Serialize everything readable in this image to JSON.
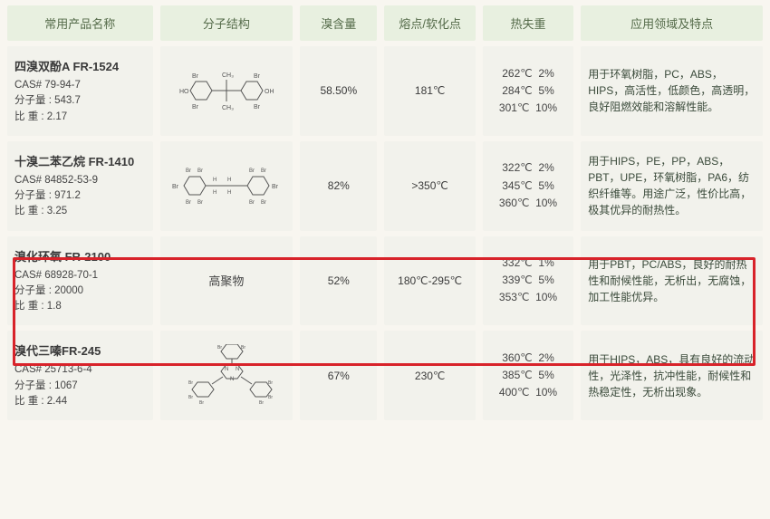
{
  "columns": {
    "name": "常用产品名称",
    "structure": "分子结构",
    "brContent": "溴含量",
    "melting": "熔点/软化点",
    "tga": "热失重",
    "application": "应用领域及特点"
  },
  "rows": [
    {
      "title": "四溴双酚A FR-1524",
      "cas": "CAS# 79-94-7",
      "mw": "分子量 : 543.7",
      "sg": "比    重 : 2.17",
      "structSvg": true,
      "structText": "",
      "br": "58.50%",
      "melt": "181℃",
      "tga": [
        {
          "temp": "262℃",
          "pct": "2%"
        },
        {
          "temp": "284℃",
          "pct": "5%"
        },
        {
          "temp": "301℃",
          "pct": "10%"
        }
      ],
      "app": "用于环氧树脂，PC，ABS，HIPS，高活性，低颜色，高透明，良好阻燃效能和溶解性能。"
    },
    {
      "title": "十溴二苯乙烷 FR-1410",
      "cas": "CAS# 84852-53-9",
      "mw": "分子量 : 971.2",
      "sg": "比    重 : 3.25",
      "structSvg": true,
      "structText": "",
      "br": "82%",
      "melt": ">350℃",
      "tga": [
        {
          "temp": "322℃",
          "pct": "2%"
        },
        {
          "temp": "345℃",
          "pct": "5%"
        },
        {
          "temp": "360℃",
          "pct": "10%"
        }
      ],
      "app": "用于HIPS，PE，PP，ABS，PBT，UPE，环氧树脂，PA6，纺织纤维等。用途广泛，性价比高，极其优异的耐热性。"
    },
    {
      "title": "溴化环氧 FR-2100",
      "cas": "CAS# 68928-70-1",
      "mw": "分子量 : 20000",
      "sg": "比    重 : 1.8",
      "structSvg": false,
      "structText": "高聚物",
      "br": "52%",
      "melt": "180℃-295℃",
      "tga": [
        {
          "temp": "332℃",
          "pct": "1%"
        },
        {
          "temp": "339℃",
          "pct": "5%"
        },
        {
          "temp": "353℃",
          "pct": "10%"
        }
      ],
      "app": "用于PBT，PC/ABS，良好的耐热性和耐候性能，无析出，无腐蚀，加工性能优异。",
      "highlight": true
    },
    {
      "title": "溴代三嗪FR-245",
      "cas": "CAS# 25713-6-4",
      "mw": "分子量 : 1067",
      "sg": "比    重 : 2.44",
      "structSvg": true,
      "structText": "",
      "br": "67%",
      "melt": "230℃",
      "tga": [
        {
          "temp": "360℃",
          "pct": "2%"
        },
        {
          "temp": "385℃",
          "pct": "5%"
        },
        {
          "temp": "400℃",
          "pct": "10%"
        }
      ],
      "app": "用于HIPS，ABS，具有良好的流动性，光泽性，抗冲性能，耐候性和热稳定性，无析出现象。"
    }
  ],
  "styling": {
    "headerBg": "#e8f0e0",
    "headerColor": "#556b4a",
    "cellBg": "#f2f2ec",
    "pageBg": "#f8f6f0",
    "highlightBorder": "#d8232a",
    "colWidths": {
      "name": 160,
      "struct": 140,
      "br": 85,
      "melt": 100,
      "tga": 100,
      "app": 200
    }
  }
}
